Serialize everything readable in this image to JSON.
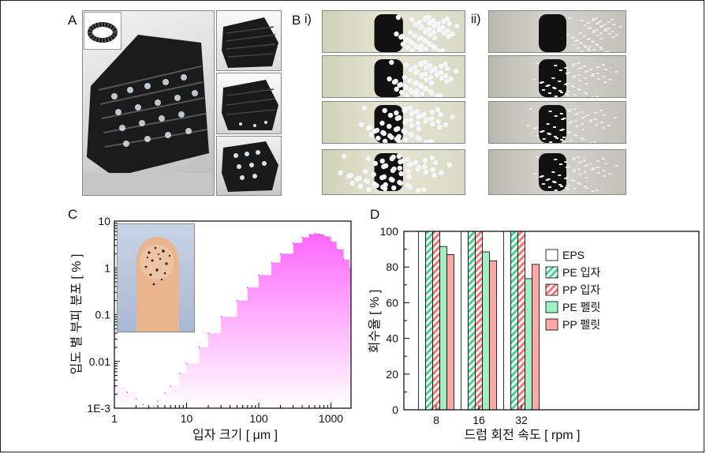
{
  "panels": {
    "A": {
      "label": "A"
    },
    "B": {
      "label": "B",
      "sub_i": "i)",
      "sub_ii": "ii)"
    },
    "C": {
      "label": "C"
    },
    "D": {
      "label": "D"
    }
  },
  "chart_data": [
    {
      "type": "area",
      "panel": "C",
      "xlabel": "입자 크기 [ μm ]",
      "ylabel": "입도 별 부피 분포 [ % ]",
      "xscale": "log",
      "yscale": "log",
      "xlim": [
        1,
        1900
      ],
      "ylim": [
        0.001,
        10
      ],
      "xticks": [
        "1",
        "10",
        "100",
        "1000"
      ],
      "yticks": [
        "1E-3",
        "0.01",
        "0.1",
        "1",
        "10"
      ],
      "x": [
        1,
        1.5,
        2,
        2.5,
        3,
        3.5,
        4,
        5,
        6,
        8,
        10,
        15,
        20,
        30,
        50,
        70,
        100,
        150,
        200,
        300,
        400,
        500,
        600,
        700,
        800,
        1000,
        1200,
        1500,
        1800
      ],
      "y": [
        0.0028,
        0.0022,
        0.0016,
        0.0012,
        0.001,
        0.0011,
        0.0014,
        0.0021,
        0.003,
        0.0055,
        0.009,
        0.02,
        0.04,
        0.09,
        0.2,
        0.38,
        0.7,
        1.3,
        2,
        3.4,
        4.5,
        5.2,
        5.4,
        5.2,
        4.7,
        3.6,
        2.5,
        1.5,
        0.95
      ],
      "color": "#ff66ff"
    },
    {
      "type": "bar",
      "panel": "D",
      "categories": [
        "8",
        "16",
        "32"
      ],
      "xlabel": "드럼 회전 속도 [ rpm ]",
      "ylabel": "회수율 [ % ]",
      "ylim": [
        0,
        100
      ],
      "yticks": [
        "0",
        "20",
        "40",
        "60",
        "80",
        "100"
      ],
      "legend_position": "right",
      "series": [
        {
          "name": "EPS",
          "values": [
            100,
            100,
            100
          ],
          "color": "#ffffff",
          "pattern": "none"
        },
        {
          "name": "PE 입자",
          "values": [
            100,
            100,
            100
          ],
          "color": "#7fe8b4",
          "pattern": "hatch"
        },
        {
          "name": "PP 입자",
          "values": [
            100,
            100,
            100
          ],
          "color": "#ff9c9c",
          "pattern": "hatch"
        },
        {
          "name": "PE 펠릿",
          "values": [
            91.5,
            88.5,
            73.5
          ],
          "color": "#9ff0c4",
          "pattern": "none"
        },
        {
          "name": "PP 펠릿",
          "values": [
            87,
            83.5,
            81.5
          ],
          "color": "#ffa6a6",
          "pattern": "none"
        }
      ]
    }
  ]
}
